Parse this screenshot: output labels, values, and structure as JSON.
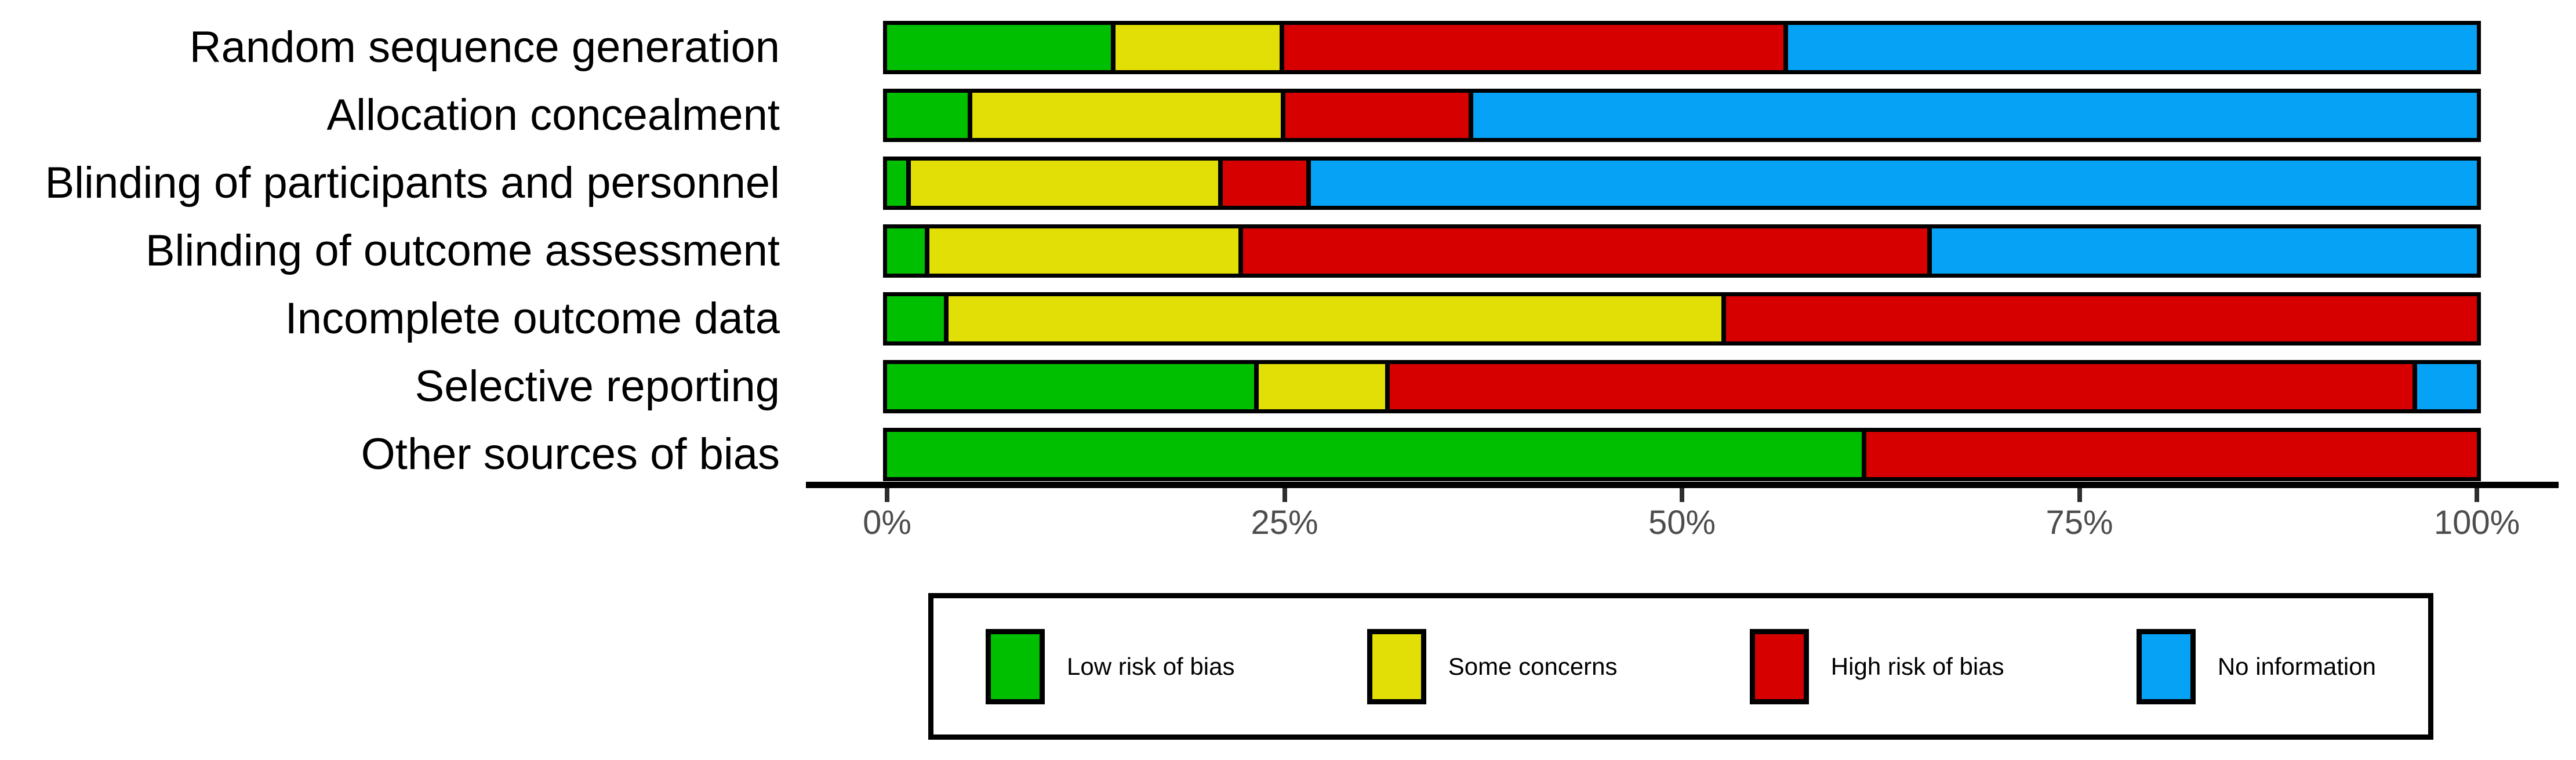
{
  "chart_data": {
    "type": "bar",
    "variant": "horizontal-stacked-100pct",
    "title": "",
    "xlabel": "",
    "ylabel": "",
    "xlim": [
      0,
      100
    ],
    "grid": false,
    "legend_position": "bottom",
    "categories": [
      "Random sequence generation",
      "Allocation concealment",
      "Blinding of participants and personnel",
      "Blinding of outcome assessment",
      "Incomplete outcome data",
      "Selective reporting",
      "Other sources of bias"
    ],
    "series": [
      {
        "name": "Low risk of bias",
        "color": "#00BF00",
        "values": [
          14.2,
          5.1,
          1.2,
          2.4,
          3.6,
          23.3,
          61.5
        ]
      },
      {
        "name": "Some concerns",
        "color": "#E2DF07",
        "values": [
          10.4,
          19.6,
          19.5,
          19.6,
          48.9,
          8.0,
          0
        ]
      },
      {
        "name": "High risk of bias",
        "color": "#D60000",
        "values": [
          31.7,
          11.6,
          5.3,
          43.4,
          47.5,
          64.9,
          38.5
        ]
      },
      {
        "name": "No information",
        "color": "#06A2F5",
        "values": [
          43.7,
          63.7,
          74.0,
          34.6,
          0,
          3.8,
          0
        ]
      }
    ],
    "x_ticks": [
      {
        "label": "0%",
        "value": 0
      },
      {
        "label": "25%",
        "value": 25
      },
      {
        "label": "50%",
        "value": 50
      },
      {
        "label": "75%",
        "value": 75
      },
      {
        "label": "100%",
        "value": 100
      }
    ]
  },
  "style": {
    "bar_border_color": "#000000",
    "axis_line_color": "#000000",
    "tick_mark_color": "#2e2e2e",
    "tick_text_color": "#4d4d4d",
    "category_text_color": "#000000",
    "legend_text_color": "#000000",
    "background": "#ffffff"
  }
}
